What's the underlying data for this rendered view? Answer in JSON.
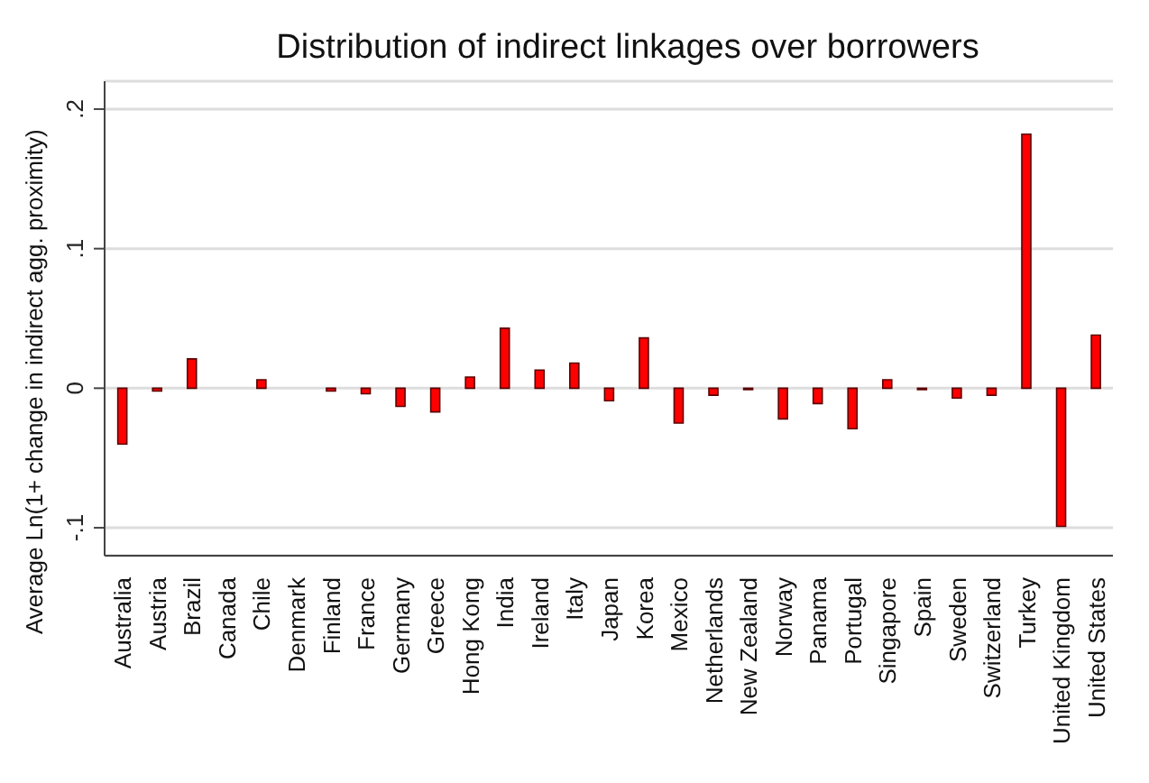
{
  "chart_data": {
    "type": "bar",
    "title": "Distribution of indirect linkages over borrowers",
    "ylabel": "Average Ln(1+ change in indirect agg. proximity)",
    "categories": [
      "Australia",
      "Austria",
      "Brazil",
      "Canada",
      "Chile",
      "Denmark",
      "Finland",
      "France",
      "Germany",
      "Greece",
      "Hong Kong",
      "India",
      "Ireland",
      "Italy",
      "Japan",
      "Korea",
      "Mexico",
      "Netherlands",
      "New Zealand",
      "Norway",
      "Panama",
      "Portugal",
      "Singapore",
      "Spain",
      "Sweden",
      "Switzerland",
      "Turkey",
      "United Kingdom",
      "United States"
    ],
    "values": [
      -0.04,
      -0.002,
      0.021,
      0,
      0.006,
      0,
      -0.002,
      -0.004,
      -0.013,
      -0.017,
      0.008,
      0.043,
      0.013,
      0.018,
      -0.009,
      0.036,
      -0.025,
      -0.005,
      -0.001,
      -0.022,
      -0.011,
      -0.029,
      0.006,
      -0.001,
      -0.007,
      -0.005,
      0.182,
      -0.099,
      0.038
    ],
    "color": "#ff0000",
    "ylim": [
      -0.12,
      0.22
    ],
    "yticks": [
      {
        "value": -0.1,
        "label": "-.1"
      },
      {
        "value": 0,
        "label": "0"
      },
      {
        "value": 0.1,
        "label": ".1"
      },
      {
        "value": 0.2,
        "label": ".2"
      }
    ],
    "grid": "y"
  }
}
